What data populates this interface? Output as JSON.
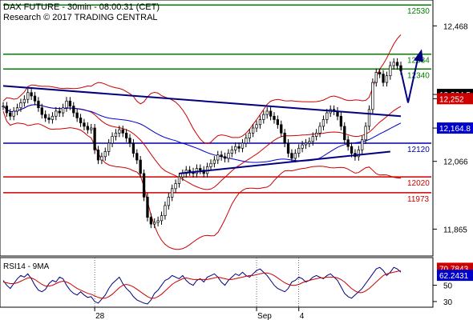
{
  "header": {
    "line1": "DAX FUTURE - 30min - 08:00:31 (CET)",
    "line2": "Research © 2017 TRADING CENTRAL"
  },
  "chart_data": [
    {
      "type": "candlestick",
      "price_ylim": [
        11790,
        12540
      ],
      "y_ticks": [
        {
          "value": 12468,
          "label": "12,468"
        },
        {
          "value": 12264.5,
          "label": "12,264.5"
        },
        {
          "value": 12252,
          "label": "12,252"
        },
        {
          "value": 12164.8,
          "label": "12,164.8"
        },
        {
          "value": 12066,
          "label": "12,066"
        },
        {
          "value": 11865,
          "label": "11,865"
        }
      ],
      "badges": [
        {
          "value": 12264.5,
          "label": "12,264.5",
          "color": "#000000",
          "text_color": "#ffffff"
        },
        {
          "value": 12252,
          "label": "12,252",
          "color": "#cc0000",
          "text_color": "#ffffff"
        },
        {
          "value": 12164.8,
          "label": "12,164.8",
          "color": "#0000cc",
          "text_color": "#ffffff"
        }
      ],
      "levels": [
        {
          "value": 12530,
          "label": "12530",
          "color": "#008000"
        },
        {
          "value": 12384,
          "label": "12384",
          "color": "#008000"
        },
        {
          "value": 12340,
          "label": "12340",
          "color": "#008000"
        },
        {
          "value": 12120,
          "label": "12120",
          "color": "#0000aa"
        },
        {
          "value": 12020,
          "label": "12020",
          "color": "#cc0000"
        },
        {
          "value": 11973,
          "label": "11973",
          "color": "#cc0000"
        }
      ],
      "x_labels": [
        {
          "index": 26,
          "label": "28"
        },
        {
          "index": 72,
          "label": "Sep"
        },
        {
          "index": 84,
          "label": "4"
        }
      ],
      "colors": {
        "candle": "#000000",
        "ma_fast": "#cc0000",
        "ma_slow": "#0000cc",
        "bands": "#cc0000",
        "trend": "#000080",
        "arrow": "#000080"
      },
      "ohlc_close": [
        12230,
        12210,
        12200,
        12215,
        12225,
        12240,
        12250,
        12270,
        12260,
        12245,
        12225,
        12205,
        12195,
        12190,
        12200,
        12215,
        12210,
        12225,
        12245,
        12230,
        12210,
        12195,
        12180,
        12170,
        12160,
        12165,
        12100,
        12070,
        12080,
        12095,
        12120,
        12140,
        12150,
        12160,
        12150,
        12135,
        12120,
        12090,
        12070,
        12030,
        11960,
        11900,
        11880,
        11885,
        11890,
        11905,
        11935,
        11960,
        11985,
        12000,
        12020,
        12030,
        12040,
        12035,
        12030,
        12045,
        12040,
        12030,
        12050,
        12060,
        12070,
        12085,
        12080,
        12075,
        12090,
        12100,
        12110,
        12105,
        12120,
        12135,
        12150,
        12165,
        12175,
        12190,
        12205,
        12215,
        12200,
        12190,
        12175,
        12150,
        12120,
        12090,
        12075,
        12090,
        12105,
        12115,
        12120,
        12125,
        12140,
        12150,
        12170,
        12190,
        12210,
        12220,
        12215,
        12200,
        12170,
        12130,
        12110,
        12090,
        12080,
        12100,
        12130,
        12170,
        12220,
        12300,
        12330,
        12325,
        12300,
        12320,
        12350,
        12360,
        12350,
        12335
      ]
    },
    {
      "type": "line",
      "title": "RSI14 - 9MA",
      "ylim": [
        25,
        82
      ],
      "y_ticks": [
        {
          "value": 30,
          "label": "30"
        },
        {
          "value": 50,
          "label": "50"
        }
      ],
      "badges": [
        {
          "value": 70.7843,
          "label": "70.7843",
          "color": "#cc0000",
          "text_color": "#ffffff"
        },
        {
          "value": 62.2431,
          "label": "62.2431",
          "color": "#0000cc",
          "text_color": "#ffffff"
        }
      ],
      "series": [
        {
          "color": "#000080",
          "values": [
            56,
            50,
            46,
            52,
            58,
            62,
            60,
            64,
            58,
            50,
            44,
            42,
            45,
            52,
            56,
            54,
            60,
            58,
            50,
            44,
            40,
            38,
            42,
            38,
            35,
            36,
            30,
            28,
            33,
            38,
            46,
            52,
            56,
            60,
            52,
            46,
            42,
            36,
            32,
            30,
            28,
            27,
            32,
            40,
            44,
            50,
            56,
            58,
            62,
            60,
            58,
            62,
            56,
            52,
            50,
            56,
            58,
            54,
            60,
            62,
            64,
            60,
            54,
            50,
            56,
            60,
            64,
            62,
            66,
            62,
            60,
            64,
            68,
            70,
            66,
            62,
            56,
            50,
            46,
            44,
            42,
            46,
            54,
            56,
            60,
            58,
            54,
            56,
            60,
            62,
            60,
            58,
            62,
            64,
            60,
            56,
            48,
            40,
            36,
            34,
            38,
            42,
            46,
            52,
            58,
            64,
            70,
            72,
            68,
            62,
            66,
            72,
            70,
            66
          ]
        },
        {
          "color": "#cc0000",
          "values": [
            54,
            53,
            52,
            52,
            53,
            55,
            57,
            59,
            59,
            57,
            54,
            51,
            49,
            49,
            50,
            52,
            54,
            55,
            54,
            52,
            49,
            46,
            44,
            42,
            40,
            39,
            37,
            35,
            34,
            34,
            36,
            39,
            43,
            47,
            50,
            51,
            50,
            48,
            45,
            42,
            39,
            36,
            34,
            34,
            36,
            39,
            43,
            47,
            51,
            54,
            56,
            58,
            59,
            58,
            57,
            57,
            57,
            57,
            57,
            58,
            59,
            60,
            59,
            58,
            57,
            57,
            58,
            59,
            60,
            61,
            62,
            62,
            63,
            64,
            65,
            65,
            64,
            62,
            59,
            56,
            53,
            51,
            50,
            50,
            51,
            53,
            55,
            56,
            57,
            58,
            59,
            59,
            60,
            60,
            60,
            59,
            57,
            54,
            50,
            46,
            43,
            41,
            41,
            43,
            46,
            50,
            54,
            58,
            62,
            64,
            65,
            66,
            67,
            68
          ]
        }
      ],
      "x_labels": [
        {
          "index": 26,
          "label": "28"
        },
        {
          "index": 72,
          "label": "Sep"
        },
        {
          "index": 84,
          "label": "4"
        }
      ]
    }
  ]
}
